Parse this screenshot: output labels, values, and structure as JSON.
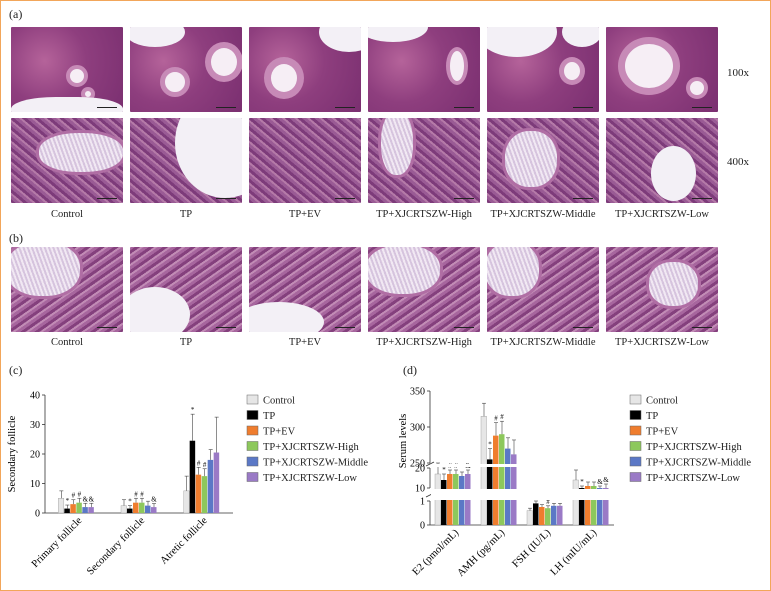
{
  "panels": {
    "a": "(a)",
    "b": "(b)",
    "c": "(c)",
    "d": "(d)"
  },
  "magnifications": [
    "100x",
    "400x"
  ],
  "groups": [
    "Control",
    "TP",
    "TP+EV",
    "TP+XJCRTSZW-High",
    "TP+XJCRTSZW-Middle",
    "TP+XJCRTSZW-Low"
  ],
  "colors": [
    "#e6e6e6",
    "#000000",
    "#ef7d2e",
    "#8dc85c",
    "#5b78c6",
    "#9a7ac6"
  ],
  "chart_data": [
    {
      "type": "bar",
      "panel": "(c)",
      "ylabel": "Secondary follicle",
      "ylim": [
        0,
        40
      ],
      "yticks": [
        0,
        10,
        20,
        30,
        40
      ],
      "categories": [
        "Primary follicle",
        "Secondary follicle",
        "Atretic follicle"
      ],
      "series": [
        {
          "name": "Control",
          "values": [
            5,
            2.5,
            7.5
          ],
          "errors": [
            2.5,
            2,
            5
          ]
        },
        {
          "name": "TP",
          "values": [
            1.5,
            1.5,
            24.5
          ],
          "errors": [
            1.2,
            1,
            9
          ]
        },
        {
          "name": "TP+EV",
          "values": [
            3,
            3.5,
            13
          ],
          "errors": [
            1.5,
            1.5,
            2.5
          ]
        },
        {
          "name": "TP+XJCRTSZW-High",
          "values": [
            3.5,
            3.5,
            12.5
          ],
          "errors": [
            1.5,
            1.5,
            2.5
          ]
        },
        {
          "name": "TP+XJCRTSZW-Middle",
          "values": [
            2,
            2.5,
            18
          ],
          "errors": [
            1.3,
            1.5,
            3.5
          ]
        },
        {
          "name": "TP+XJCRTSZW-Low",
          "values": [
            2,
            2,
            20.5
          ],
          "errors": [
            1.3,
            1.2,
            12
          ]
        }
      ],
      "annotations": [
        {
          "category": "Primary follicle",
          "marks": [
            "",
            "*",
            "#",
            "#",
            "&",
            "&"
          ]
        },
        {
          "category": "Secondary follicle",
          "marks": [
            "",
            "*",
            "#",
            "#",
            "",
            "&"
          ]
        },
        {
          "category": "Atretic follicle",
          "marks": [
            "",
            "*",
            "#",
            "#",
            "",
            ""
          ]
        }
      ]
    },
    {
      "type": "bar",
      "panel": "(d)",
      "ylabel": "Serum levels",
      "axis_break": "broken y-axis (0-1 / 10-20 / 250-350)",
      "yticks": [
        0,
        1,
        10,
        20,
        250,
        300,
        350
      ],
      "categories": [
        "E2 (pmol/mL)",
        "AMH (pg/mL)",
        "FSH (IU/L)",
        "LH (mIU/mL)"
      ],
      "series": [
        {
          "name": "Control",
          "values": [
            17,
            315,
            0.6,
            14
          ],
          "errors": [
            4,
            18,
            0.1,
            5
          ]
        },
        {
          "name": "TP",
          "values": [
            14,
            255,
            0.9,
            9
          ],
          "errors": [
            3,
            15,
            0.1,
            2
          ]
        },
        {
          "name": "TP+EV",
          "values": [
            17,
            288,
            0.75,
            11
          ],
          "errors": [
            2,
            18,
            0.1,
            2
          ]
        },
        {
          "name": "TP+XJCRTSZW-High",
          "values": [
            17,
            290,
            0.7,
            11
          ],
          "errors": [
            2,
            18,
            0.1,
            2
          ]
        },
        {
          "name": "TP+XJCRTSZW-Middle",
          "values": [
            16,
            270,
            0.8,
            9
          ],
          "errors": [
            2,
            15,
            0.1,
            2
          ]
        },
        {
          "name": "TP+XJCRTSZW-Low",
          "values": [
            17,
            262,
            0.8,
            10
          ],
          "errors": [
            2,
            20,
            0.1,
            2
          ]
        }
      ],
      "annotations": [
        {
          "category": "E2 (pmol/mL)",
          "marks": [
            "",
            "*",
            "#",
            "#",
            "",
            "&"
          ]
        },
        {
          "category": "AMH (pg/mL)",
          "marks": [
            "",
            "*",
            "#",
            "#",
            "",
            ""
          ]
        },
        {
          "category": "FSH (IU/L)",
          "marks": [
            "",
            "*",
            "",
            "#",
            "",
            ""
          ]
        },
        {
          "category": "LH (mIU/mL)",
          "marks": [
            "",
            "*",
            "",
            "",
            "&",
            "&"
          ]
        }
      ]
    }
  ]
}
